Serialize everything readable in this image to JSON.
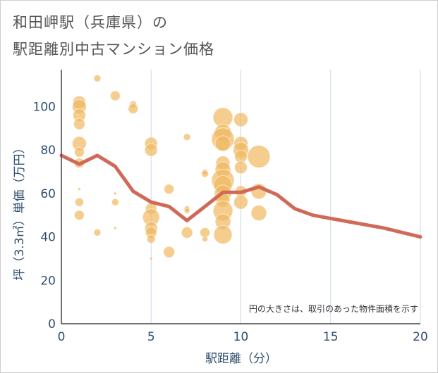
{
  "page": {
    "title_line1": "和田岬駅（兵庫県）の",
    "title_line2": "駅距離別中古マンション価格"
  },
  "colors": {
    "bubble": "#F0B860",
    "line": "#D06A58",
    "grid": "#C8D8E8",
    "text": "#2F4F6F"
  },
  "chart_data": {
    "type": "scatter",
    "xlabel": "駅距離（分）",
    "ylabel": "坪（3.3㎡）単価（万円）",
    "annotation": "円の大きさは、取引のあった物件面積を示す",
    "xlim": [
      0,
      20
    ],
    "ylim": [
      0,
      117
    ],
    "x_ticks": [
      0,
      5,
      10,
      15,
      20
    ],
    "y_ticks": [
      0,
      20,
      40,
      60,
      80,
      100
    ],
    "grid": "vertical lines at x ticks",
    "series": [
      {
        "kind": "bubble",
        "points": [
          {
            "x": 1,
            "y": 102,
            "s": 9
          },
          {
            "x": 1,
            "y": 100,
            "s": 10
          },
          {
            "x": 1,
            "y": 96,
            "s": 9
          },
          {
            "x": 1,
            "y": 92,
            "s": 8
          },
          {
            "x": 1,
            "y": 83,
            "s": 10
          },
          {
            "x": 1,
            "y": 79,
            "s": 7
          },
          {
            "x": 1,
            "y": 74,
            "s": 7
          },
          {
            "x": 1,
            "y": 62,
            "s": 2
          },
          {
            "x": 1,
            "y": 56,
            "s": 6
          },
          {
            "x": 1,
            "y": 50,
            "s": 7
          },
          {
            "x": 2,
            "y": 113,
            "s": 5
          },
          {
            "x": 2,
            "y": 42,
            "s": 5
          },
          {
            "x": 3,
            "y": 105,
            "s": 7
          },
          {
            "x": 3,
            "y": 60,
            "s": 2
          },
          {
            "x": 3,
            "y": 56,
            "s": 5
          },
          {
            "x": 3,
            "y": 44,
            "s": 2
          },
          {
            "x": 4,
            "y": 101,
            "s": 5
          },
          {
            "x": 4,
            "y": 99,
            "s": 7
          },
          {
            "x": 5,
            "y": 83,
            "s": 9
          },
          {
            "x": 5,
            "y": 80,
            "s": 9
          },
          {
            "x": 5,
            "y": 53,
            "s": 8
          },
          {
            "x": 5,
            "y": 49,
            "s": 12
          },
          {
            "x": 5,
            "y": 44,
            "s": 9
          },
          {
            "x": 5,
            "y": 42,
            "s": 8
          },
          {
            "x": 5,
            "y": 39,
            "s": 6
          },
          {
            "x": 5,
            "y": 30,
            "s": 2
          },
          {
            "x": 6,
            "y": 62,
            "s": 7
          },
          {
            "x": 6,
            "y": 33,
            "s": 8
          },
          {
            "x": 7,
            "y": 86,
            "s": 5
          },
          {
            "x": 7,
            "y": 53,
            "s": 4
          },
          {
            "x": 7,
            "y": 52,
            "s": 4
          },
          {
            "x": 7,
            "y": 42,
            "s": 8
          },
          {
            "x": 8,
            "y": 70,
            "s": 4
          },
          {
            "x": 8,
            "y": 69,
            "s": 5
          },
          {
            "x": 8,
            "y": 42,
            "s": 7
          },
          {
            "x": 8,
            "y": 39,
            "s": 4
          },
          {
            "x": 9,
            "y": 95,
            "s": 14
          },
          {
            "x": 9,
            "y": 88,
            "s": 12
          },
          {
            "x": 9,
            "y": 85,
            "s": 16
          },
          {
            "x": 9,
            "y": 83,
            "s": 11
          },
          {
            "x": 9,
            "y": 74,
            "s": 10
          },
          {
            "x": 9,
            "y": 71,
            "s": 11
          },
          {
            "x": 9,
            "y": 66,
            "s": 16
          },
          {
            "x": 9,
            "y": 64,
            "s": 13
          },
          {
            "x": 9,
            "y": 60,
            "s": 12
          },
          {
            "x": 9,
            "y": 57,
            "s": 10
          },
          {
            "x": 9,
            "y": 52,
            "s": 14
          },
          {
            "x": 9,
            "y": 47,
            "s": 11
          },
          {
            "x": 9,
            "y": 41,
            "s": 13
          },
          {
            "x": 10,
            "y": 94,
            "s": 10
          },
          {
            "x": 10,
            "y": 83,
            "s": 10
          },
          {
            "x": 10,
            "y": 80,
            "s": 11
          },
          {
            "x": 10,
            "y": 77,
            "s": 9
          },
          {
            "x": 10,
            "y": 72,
            "s": 9
          },
          {
            "x": 10,
            "y": 61,
            "s": 8
          },
          {
            "x": 10,
            "y": 56,
            "s": 10
          },
          {
            "x": 11,
            "y": 77,
            "s": 16
          },
          {
            "x": 11,
            "y": 61,
            "s": 11
          },
          {
            "x": 11,
            "y": 51,
            "s": 11
          }
        ]
      },
      {
        "kind": "line",
        "points": [
          {
            "x": 0,
            "y": 77.5
          },
          {
            "x": 1,
            "y": 73.5
          },
          {
            "x": 2,
            "y": 77.5
          },
          {
            "x": 3,
            "y": 72.5
          },
          {
            "x": 4,
            "y": 61
          },
          {
            "x": 5,
            "y": 56
          },
          {
            "x": 6,
            "y": 54
          },
          {
            "x": 7,
            "y": 47.5
          },
          {
            "x": 8,
            "y": 54
          },
          {
            "x": 9,
            "y": 60.5
          },
          {
            "x": 10,
            "y": 60.5
          },
          {
            "x": 11,
            "y": 63
          },
          {
            "x": 12,
            "y": 59.5
          },
          {
            "x": 13,
            "y": 53
          },
          {
            "x": 14,
            "y": 50
          },
          {
            "x": 15,
            "y": 48.5
          },
          {
            "x": 16,
            "y": 47
          },
          {
            "x": 17,
            "y": 45.5
          },
          {
            "x": 18,
            "y": 44
          },
          {
            "x": 19,
            "y": 42
          },
          {
            "x": 20,
            "y": 40
          }
        ]
      }
    ]
  }
}
